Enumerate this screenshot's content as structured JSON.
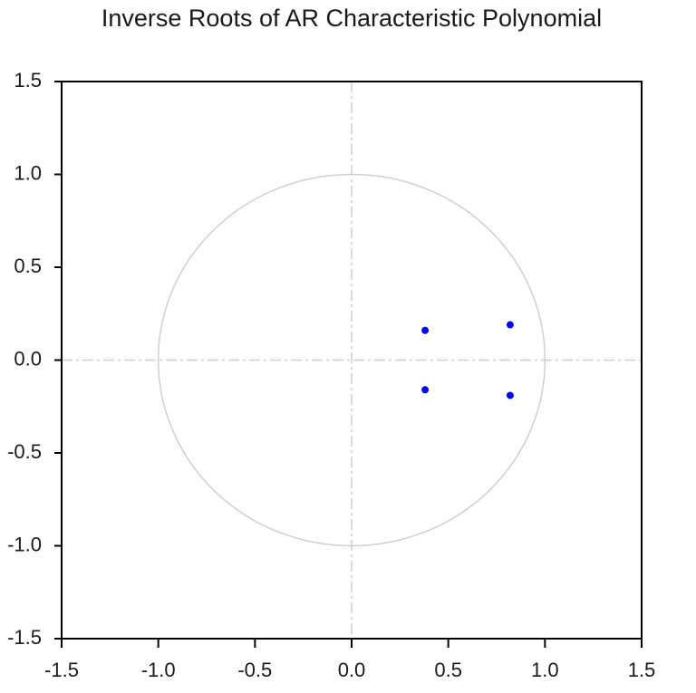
{
  "chart_data": {
    "type": "scatter",
    "title": "Inverse Roots of AR Characteristic Polynomial",
    "x": [
      0.38,
      0.38,
      0.82,
      0.82
    ],
    "values": [
      0.16,
      -0.16,
      0.19,
      -0.19
    ],
    "color": "#0000ff",
    "xlim": [
      -1.5,
      1.5
    ],
    "ylim": [
      -1.5,
      1.5
    ],
    "xticks": [
      -1.5,
      {
        "value": -1.0,
        "label": "-1.0"
      },
      -0.5,
      {
        "value": 0.0,
        "label": "0.0"
      },
      0.5,
      {
        "value": 1.0,
        "label": "1.0"
      },
      1.5
    ],
    "yticks": [
      -1.5,
      {
        "value": -1.0,
        "label": "-1.0"
      },
      -0.5,
      {
        "value": 0.0,
        "label": "0.0"
      },
      0.5,
      {
        "value": 1.0,
        "label": "1.0"
      },
      1.5
    ],
    "zero_lines": true,
    "reference_circle": {
      "radius": 1
    }
  }
}
